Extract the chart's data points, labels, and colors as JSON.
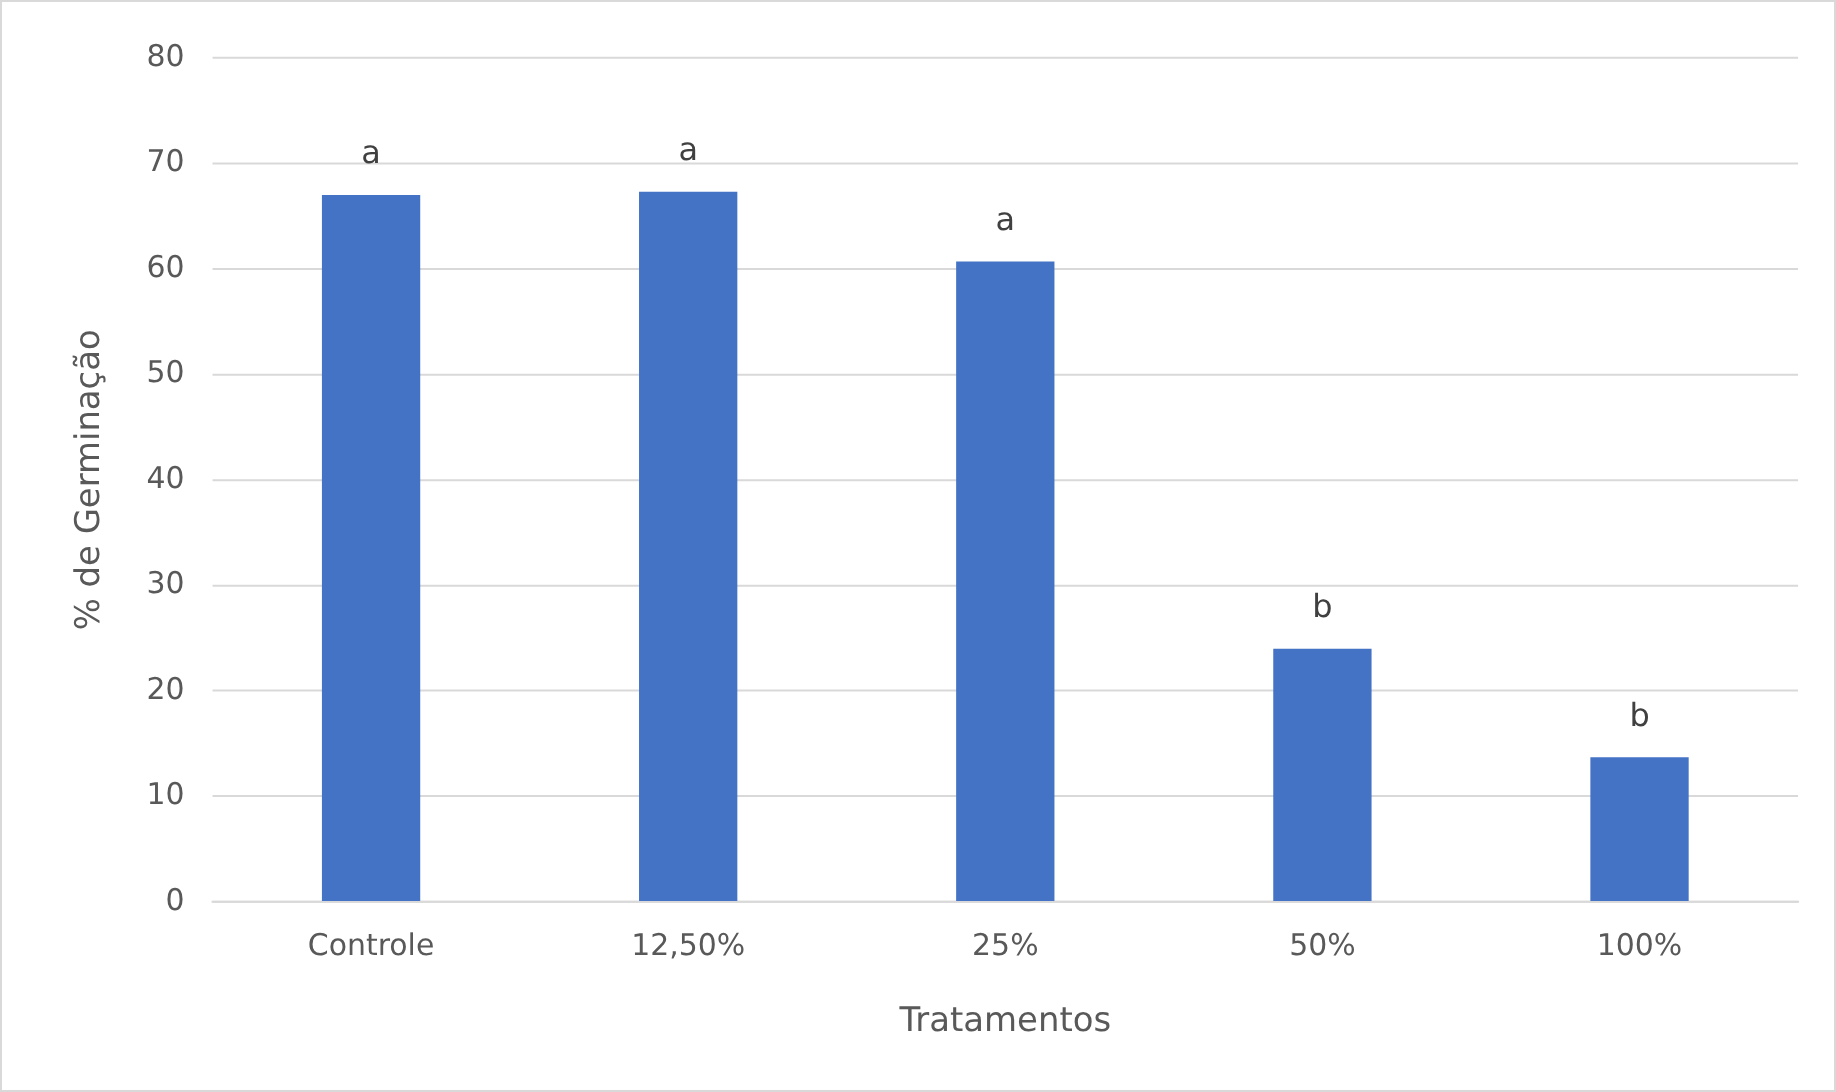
{
  "chart_data": {
    "type": "bar",
    "xlabel": "Tratamentos",
    "ylabel": "% de Germinação",
    "categories": [
      "Controle",
      "12,50%",
      "25%",
      "50%",
      "100%"
    ],
    "values": [
      67,
      67.3,
      60.7,
      24,
      13.7
    ],
    "color": "#4472c4",
    "ylim": [
      0,
      80
    ],
    "yticks": [
      0,
      10,
      20,
      30,
      40,
      50,
      60,
      70,
      80
    ],
    "grid": "y",
    "legend": false,
    "annotations": [
      {
        "text": "a",
        "x": "Controle",
        "y": 67
      },
      {
        "text": "a",
        "x": "12,50%",
        "y": 67.3
      },
      {
        "text": "a",
        "x": "25%",
        "y": 60.7
      },
      {
        "text": "b",
        "x": "50%",
        "y": 24
      },
      {
        "text": "b",
        "x": "100%",
        "y": 13.7
      }
    ]
  }
}
